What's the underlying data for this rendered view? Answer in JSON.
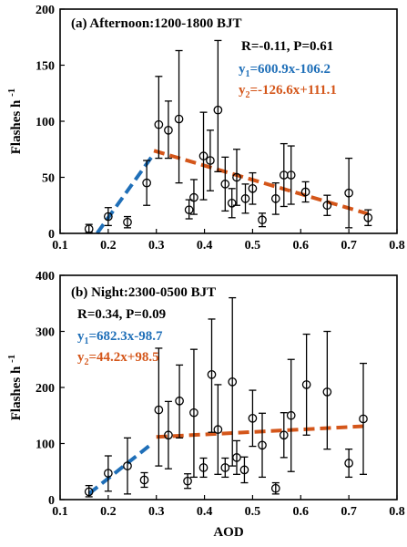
{
  "chart_data": [
    {
      "type": "scatter",
      "title": "(a) Afternoon:1200-1800 BJT",
      "ylabel": "Flashes h",
      "ylabel_sup": "-1",
      "xlabel": "",
      "xlim": [
        0.1,
        0.8
      ],
      "ylim": [
        0,
        200
      ],
      "xticks": [
        "0.1",
        "0.2",
        "0.3",
        "0.4",
        "0.5",
        "0.6",
        "0.7",
        "0.8"
      ],
      "yticks": [
        "0",
        "50",
        "100",
        "150",
        "200"
      ],
      "stats": "R=-0.11, P=0.61",
      "fits": [
        {
          "prefix": "y",
          "sub": "1",
          "expr": "=600.9x-106.2",
          "color": "#1f6fb8",
          "slope": 600.9,
          "intercept": -106.2,
          "x": [
            0.177,
            0.295
          ]
        },
        {
          "prefix": "y",
          "sub": "2",
          "expr": "=-126.6x+111.1",
          "color": "#d4561a",
          "slope": -126.6,
          "intercept": 111.1,
          "x": [
            0.295,
            0.74
          ]
        }
      ],
      "points": [
        {
          "x": 0.16,
          "y": 4,
          "lo": 1,
          "hi": 8
        },
        {
          "x": 0.2,
          "y": 15,
          "lo": 7,
          "hi": 23
        },
        {
          "x": 0.24,
          "y": 10,
          "lo": 5,
          "hi": 15
        },
        {
          "x": 0.28,
          "y": 45,
          "lo": 25,
          "hi": 65
        },
        {
          "x": 0.305,
          "y": 97,
          "lo": 67,
          "hi": 140
        },
        {
          "x": 0.325,
          "y": 92,
          "lo": 67,
          "hi": 118
        },
        {
          "x": 0.347,
          "y": 102,
          "lo": 45,
          "hi": 163
        },
        {
          "x": 0.368,
          "y": 21,
          "lo": 13,
          "hi": 30
        },
        {
          "x": 0.378,
          "y": 32,
          "lo": 17,
          "hi": 48
        },
        {
          "x": 0.398,
          "y": 69,
          "lo": 30,
          "hi": 108
        },
        {
          "x": 0.412,
          "y": 65,
          "lo": 38,
          "hi": 92
        },
        {
          "x": 0.428,
          "y": 110,
          "lo": 55,
          "hi": 172
        },
        {
          "x": 0.443,
          "y": 44,
          "lo": 20,
          "hi": 68
        },
        {
          "x": 0.457,
          "y": 27,
          "lo": 14,
          "hi": 40
        },
        {
          "x": 0.467,
          "y": 50,
          "lo": 25,
          "hi": 75
        },
        {
          "x": 0.485,
          "y": 31,
          "lo": 18,
          "hi": 44
        },
        {
          "x": 0.5,
          "y": 40,
          "lo": 26,
          "hi": 54
        },
        {
          "x": 0.52,
          "y": 12,
          "lo": 6,
          "hi": 18
        },
        {
          "x": 0.548,
          "y": 31,
          "lo": 17,
          "hi": 45
        },
        {
          "x": 0.565,
          "y": 52,
          "lo": 24,
          "hi": 80
        },
        {
          "x": 0.58,
          "y": 52,
          "lo": 26,
          "hi": 78
        },
        {
          "x": 0.61,
          "y": 37,
          "lo": 28,
          "hi": 46
        },
        {
          "x": 0.655,
          "y": 25,
          "lo": 16,
          "hi": 34
        },
        {
          "x": 0.7,
          "y": 36,
          "lo": 5,
          "hi": 67
        },
        {
          "x": 0.74,
          "y": 14,
          "lo": 7,
          "hi": 21
        }
      ]
    },
    {
      "type": "scatter",
      "title": "(b) Night:2300-0500 BJT",
      "ylabel": "Flashes h",
      "ylabel_sup": "-1",
      "xlabel": "AOD",
      "xlim": [
        0.1,
        0.8
      ],
      "ylim": [
        0,
        400
      ],
      "xticks": [
        "0.1",
        "0.2",
        "0.3",
        "0.4",
        "0.5",
        "0.6",
        "0.7",
        "0.8"
      ],
      "yticks": [
        "0",
        "100",
        "200",
        "300",
        "400"
      ],
      "stats": "R=0.34, P=0.09",
      "fits": [
        {
          "prefix": "y",
          "sub": "1",
          "expr": "=682.3x-98.7",
          "color": "#1f6fb8",
          "slope": 682.3,
          "intercept": -98.7,
          "x": [
            0.16,
            0.285
          ]
        },
        {
          "prefix": "y",
          "sub": "2",
          "expr": "=44.2x+98.5",
          "color": "#d4561a",
          "slope": 44.2,
          "intercept": 98.5,
          "x": [
            0.3,
            0.74
          ]
        }
      ],
      "points": [
        {
          "x": 0.16,
          "y": 14,
          "lo": 5,
          "hi": 25
        },
        {
          "x": 0.2,
          "y": 47,
          "lo": 15,
          "hi": 78
        },
        {
          "x": 0.24,
          "y": 60,
          "lo": 10,
          "hi": 110
        },
        {
          "x": 0.275,
          "y": 35,
          "lo": 22,
          "hi": 48
        },
        {
          "x": 0.305,
          "y": 160,
          "lo": 60,
          "hi": 270
        },
        {
          "x": 0.325,
          "y": 115,
          "lo": 55,
          "hi": 175
        },
        {
          "x": 0.348,
          "y": 176,
          "lo": 110,
          "hi": 240
        },
        {
          "x": 0.365,
          "y": 33,
          "lo": 20,
          "hi": 46
        },
        {
          "x": 0.378,
          "y": 155,
          "lo": 40,
          "hi": 268
        },
        {
          "x": 0.398,
          "y": 57,
          "lo": 40,
          "hi": 74
        },
        {
          "x": 0.415,
          "y": 223,
          "lo": 120,
          "hi": 322
        },
        {
          "x": 0.428,
          "y": 125,
          "lo": 45,
          "hi": 205
        },
        {
          "x": 0.443,
          "y": 57,
          "lo": 40,
          "hi": 74
        },
        {
          "x": 0.458,
          "y": 210,
          "lo": 60,
          "hi": 360
        },
        {
          "x": 0.467,
          "y": 75,
          "lo": 45,
          "hi": 105
        },
        {
          "x": 0.483,
          "y": 53,
          "lo": 30,
          "hi": 76
        },
        {
          "x": 0.5,
          "y": 145,
          "lo": 95,
          "hi": 195
        },
        {
          "x": 0.52,
          "y": 97,
          "lo": 40,
          "hi": 154
        },
        {
          "x": 0.548,
          "y": 20,
          "lo": 10,
          "hi": 30
        },
        {
          "x": 0.565,
          "y": 115,
          "lo": 75,
          "hi": 155
        },
        {
          "x": 0.58,
          "y": 150,
          "lo": 50,
          "hi": 250
        },
        {
          "x": 0.612,
          "y": 205,
          "lo": 115,
          "hi": 295
        },
        {
          "x": 0.655,
          "y": 192,
          "lo": 90,
          "hi": 300
        },
        {
          "x": 0.7,
          "y": 65,
          "lo": 40,
          "hi": 90
        },
        {
          "x": 0.73,
          "y": 144,
          "lo": 45,
          "hi": 243
        }
      ]
    }
  ]
}
